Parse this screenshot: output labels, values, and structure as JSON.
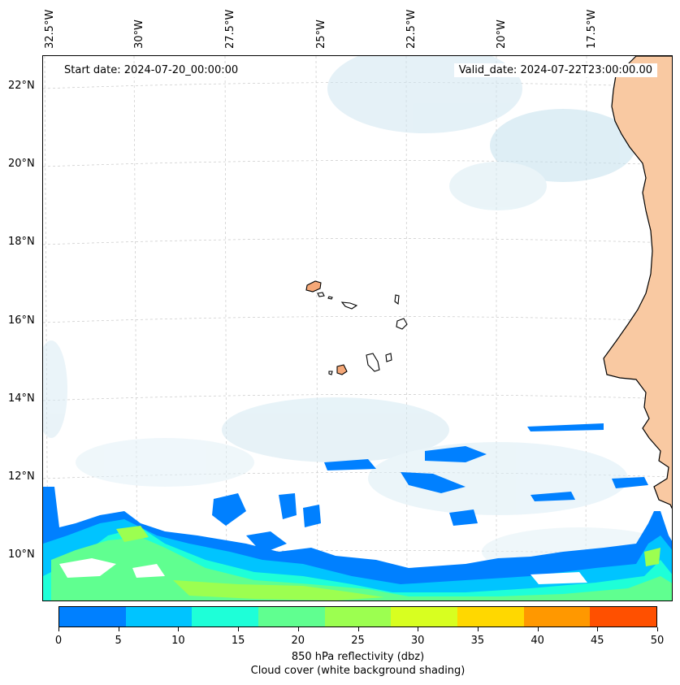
{
  "header": {
    "start_date": "Start date: 2024-07-20_00:00:00",
    "valid_date": "Valid_date: 2024-07-22T23:00:00.00"
  },
  "axes": {
    "lon_labels": [
      "32.5°W",
      "30°W",
      "27.5°W",
      "25°W",
      "22.5°W",
      "20°W",
      "17.5°W"
    ],
    "lat_labels": [
      "22°N",
      "20°N",
      "18°N",
      "16°N",
      "14°N",
      "12°N",
      "10°N"
    ]
  },
  "colorbar": {
    "ticks": [
      "0",
      "5",
      "10",
      "15",
      "20",
      "25",
      "30",
      "35",
      "40",
      "45",
      "50"
    ],
    "colors": [
      "#0080ff",
      "#00c4ff",
      "#1effd8",
      "#60ff90",
      "#9cff50",
      "#d8ff20",
      "#ffd800",
      "#ff9800",
      "#ff5000"
    ],
    "label_line1": "850 hPa reflectivity (dbz)",
    "label_line2": "Cloud cover (white background shading)"
  },
  "colors": {
    "land": "#f9c9a2",
    "cloud": "#d4e9f2",
    "coast": "#000000"
  }
}
